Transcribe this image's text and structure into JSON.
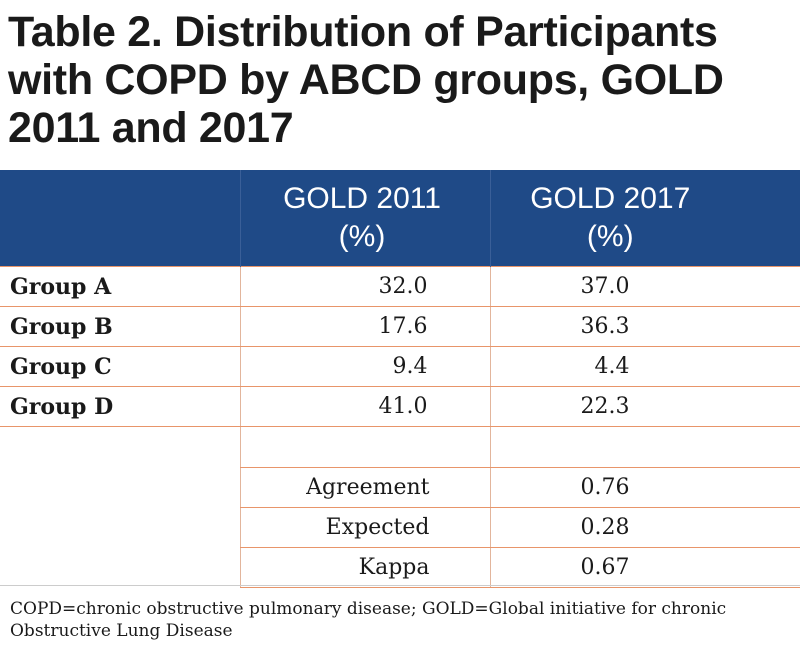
{
  "title": "Table 2. Distribution of Participants with COPD by ABCD groups, GOLD 2011 and 2017",
  "table": {
    "headers": {
      "col1_line1": "GOLD 2011",
      "col1_line2": "(%)",
      "col2_line1": "GOLD 2017",
      "col2_line2": "(%)"
    },
    "rows": [
      {
        "label": "Group A",
        "gold2011": "32.0",
        "gold2017": "37.0"
      },
      {
        "label": "Group B",
        "gold2011": "17.6",
        "gold2017": "36.3"
      },
      {
        "label": "Group C",
        "gold2011": "9.4",
        "gold2017": "4.4"
      },
      {
        "label": "Group D",
        "gold2011": "41.0",
        "gold2017": "22.3"
      }
    ],
    "stats": [
      {
        "label": "Agreement",
        "value": "0.76"
      },
      {
        "label": "Expected",
        "value": "0.28"
      },
      {
        "label": "Kappa",
        "value": "0.67"
      }
    ]
  },
  "footnote": "COPD=chronic obstructive pulmonary disease; GOLD=Global initiative for chronic Obstructive Lung Disease",
  "colors": {
    "header_bg": "#1f4a87",
    "rule": "#e8956a"
  }
}
